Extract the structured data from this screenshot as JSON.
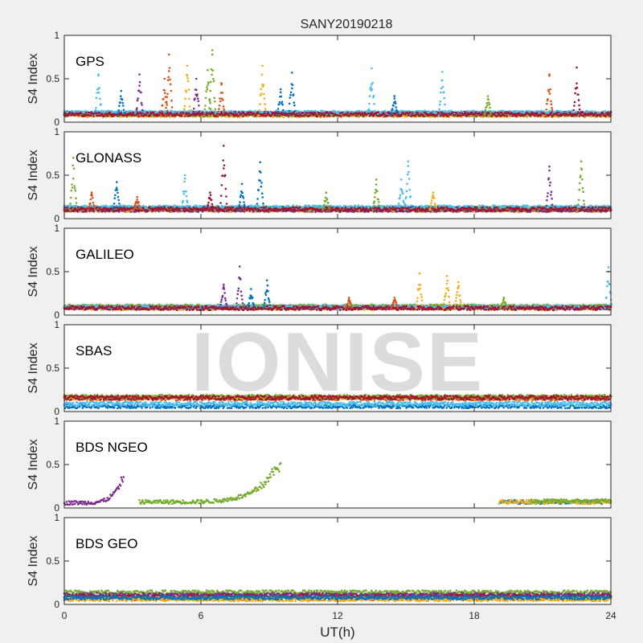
{
  "chart_data": {
    "type": "scatter",
    "title": "SANY20190218",
    "xlabel": "UT(h)",
    "ylabel": "S4 Index",
    "xlim": [
      0,
      24
    ],
    "ylim": [
      0,
      1
    ],
    "xticks": [
      "0",
      "6",
      "12",
      "18",
      "24"
    ],
    "yticks": [
      "0",
      "0.5",
      "1"
    ],
    "watermark": "IONISE",
    "colors": [
      "#0072BD",
      "#D95319",
      "#EDB120",
      "#7E2F8E",
      "#77AC30",
      "#4DBEEE",
      "#A2142F"
    ],
    "panels": [
      {
        "label": "GPS",
        "baseline_s4": 0.08,
        "spikes": [
          {
            "t": 1.5,
            "s4": 0.55,
            "c": 5
          },
          {
            "t": 2.5,
            "s4": 0.36,
            "c": 0
          },
          {
            "t": 3.3,
            "s4": 0.55,
            "c": 3
          },
          {
            "t": 4.4,
            "s4": 0.5,
            "c": 1
          },
          {
            "t": 4.6,
            "s4": 0.78,
            "c": 1
          },
          {
            "t": 5.4,
            "s4": 0.65,
            "c": 2
          },
          {
            "t": 5.8,
            "s4": 0.5,
            "c": 3
          },
          {
            "t": 6.3,
            "s4": 0.6,
            "c": 4
          },
          {
            "t": 6.5,
            "s4": 0.83,
            "c": 4
          },
          {
            "t": 6.9,
            "s4": 0.45,
            "c": 1
          },
          {
            "t": 8.7,
            "s4": 0.65,
            "c": 2
          },
          {
            "t": 9.5,
            "s4": 0.38,
            "c": 0
          },
          {
            "t": 10.0,
            "s4": 0.57,
            "c": 0
          },
          {
            "t": 13.5,
            "s4": 0.62,
            "c": 5
          },
          {
            "t": 14.5,
            "s4": 0.3,
            "c": 0
          },
          {
            "t": 16.6,
            "s4": 0.58,
            "c": 5
          },
          {
            "t": 18.6,
            "s4": 0.3,
            "c": 4
          },
          {
            "t": 21.3,
            "s4": 0.55,
            "c": 1
          },
          {
            "t": 22.5,
            "s4": 0.63,
            "c": 6
          }
        ],
        "segments": [
          {
            "from": 0,
            "to": 24,
            "level": 0.1,
            "c": 0
          },
          {
            "from": 0,
            "to": 24,
            "level": 0.09,
            "c": 1
          },
          {
            "from": 0,
            "to": 24,
            "level": 0.08,
            "c": 2
          },
          {
            "from": 0,
            "to": 24,
            "level": 0.1,
            "c": 3
          },
          {
            "from": 0,
            "to": 24,
            "level": 0.09,
            "c": 4
          },
          {
            "from": 0,
            "to": 24,
            "level": 0.11,
            "c": 5
          },
          {
            "from": 0,
            "to": 24,
            "level": 0.09,
            "c": 6
          }
        ]
      },
      {
        "label": "GLONASS",
        "baseline_s4": 0.1,
        "spikes": [
          {
            "t": 0.4,
            "s4": 0.7,
            "c": 4
          },
          {
            "t": 1.2,
            "s4": 0.3,
            "c": 1
          },
          {
            "t": 2.3,
            "s4": 0.42,
            "c": 0
          },
          {
            "t": 3.2,
            "s4": 0.25,
            "c": 1
          },
          {
            "t": 5.3,
            "s4": 0.5,
            "c": 5
          },
          {
            "t": 6.4,
            "s4": 0.3,
            "c": 6
          },
          {
            "t": 7.0,
            "s4": 0.84,
            "c": 6
          },
          {
            "t": 7.8,
            "s4": 0.4,
            "c": 0
          },
          {
            "t": 8.6,
            "s4": 0.65,
            "c": 0
          },
          {
            "t": 11.5,
            "s4": 0.3,
            "c": 4
          },
          {
            "t": 13.7,
            "s4": 0.45,
            "c": 4
          },
          {
            "t": 14.8,
            "s4": 0.45,
            "c": 5
          },
          {
            "t": 15.1,
            "s4": 0.66,
            "c": 5
          },
          {
            "t": 16.2,
            "s4": 0.3,
            "c": 2
          },
          {
            "t": 21.3,
            "s4": 0.6,
            "c": 3
          },
          {
            "t": 22.7,
            "s4": 0.66,
            "c": 4
          }
        ],
        "segments": [
          {
            "from": 0,
            "to": 24,
            "level": 0.12,
            "c": 0
          },
          {
            "from": 0,
            "to": 24,
            "level": 0.1,
            "c": 1
          },
          {
            "from": 0,
            "to": 24,
            "level": 0.1,
            "c": 2
          },
          {
            "from": 0,
            "to": 24,
            "level": 0.1,
            "c": 3
          },
          {
            "from": 0,
            "to": 24,
            "level": 0.12,
            "c": 4
          },
          {
            "from": 0,
            "to": 24,
            "level": 0.13,
            "c": 5
          },
          {
            "from": 0,
            "to": 24,
            "level": 0.11,
            "c": 6
          }
        ]
      },
      {
        "label": "GALILEO",
        "baseline_s4": 0.08,
        "spikes": [
          {
            "t": 7.0,
            "s4": 0.35,
            "c": 3
          },
          {
            "t": 7.7,
            "s4": 0.56,
            "c": 3
          },
          {
            "t": 8.2,
            "s4": 0.3,
            "c": 0
          },
          {
            "t": 8.9,
            "s4": 0.4,
            "c": 0
          },
          {
            "t": 12.5,
            "s4": 0.2,
            "c": 1
          },
          {
            "t": 14.5,
            "s4": 0.2,
            "c": 1
          },
          {
            "t": 15.6,
            "s4": 0.48,
            "c": 2
          },
          {
            "t": 16.8,
            "s4": 0.45,
            "c": 2
          },
          {
            "t": 17.3,
            "s4": 0.38,
            "c": 2
          },
          {
            "t": 19.3,
            "s4": 0.2,
            "c": 4
          },
          {
            "t": 23.9,
            "s4": 0.55,
            "c": 5
          }
        ],
        "segments": [
          {
            "from": 0,
            "to": 24,
            "level": 0.09,
            "c": 0
          },
          {
            "from": 0,
            "to": 24,
            "level": 0.09,
            "c": 1
          },
          {
            "from": 0,
            "to": 24,
            "level": 0.08,
            "c": 2
          },
          {
            "from": 0,
            "to": 24,
            "level": 0.09,
            "c": 3
          },
          {
            "from": 0,
            "to": 24,
            "level": 0.1,
            "c": 4
          },
          {
            "from": 0,
            "to": 24,
            "level": 0.09,
            "c": 5
          },
          {
            "from": 0,
            "to": 24,
            "level": 0.08,
            "c": 6
          }
        ]
      },
      {
        "label": "SBAS",
        "baseline_s4": 0.13,
        "spikes": [],
        "segments": [
          {
            "from": 0,
            "to": 24,
            "level": 0.06,
            "c": 0
          },
          {
            "from": 0,
            "to": 24,
            "level": 0.15,
            "c": 1
          },
          {
            "from": 0,
            "to": 24,
            "level": 0.16,
            "c": 2
          },
          {
            "from": 0,
            "to": 24,
            "level": 0.17,
            "c": 4
          },
          {
            "from": 0,
            "to": 24,
            "level": 0.09,
            "c": 5
          },
          {
            "from": 0,
            "to": 24,
            "level": 0.16,
            "c": 6
          }
        ]
      },
      {
        "label": "BDS NGEO",
        "baseline_s4": 0.07,
        "spikes": [],
        "segments": [
          {
            "from": 0,
            "to": 2.6,
            "level": 0.06,
            "c": 3,
            "rise_to": 0.4
          },
          {
            "from": 3.3,
            "to": 9.5,
            "level": 0.07,
            "c": 4,
            "rise_to": 0.58
          },
          {
            "from": 19.1,
            "to": 24,
            "level": 0.07,
            "c": 0
          },
          {
            "from": 19.1,
            "to": 24,
            "level": 0.07,
            "c": 2
          },
          {
            "from": 20.5,
            "to": 24,
            "level": 0.08,
            "c": 4
          }
        ]
      },
      {
        "label": "BDS GEO",
        "baseline_s4": 0.1,
        "spikes": [],
        "segments": [
          {
            "from": 0,
            "to": 24,
            "level": 0.14,
            "c": 4
          },
          {
            "from": 0,
            "to": 24,
            "level": 0.11,
            "c": 3
          },
          {
            "from": 0,
            "to": 24,
            "level": 0.09,
            "c": 6
          },
          {
            "from": 0,
            "to": 24,
            "level": 0.07,
            "c": 1
          },
          {
            "from": 0,
            "to": 24,
            "level": 0.06,
            "c": 2
          },
          {
            "from": 0,
            "to": 24,
            "level": 0.08,
            "c": 0
          }
        ]
      }
    ]
  }
}
